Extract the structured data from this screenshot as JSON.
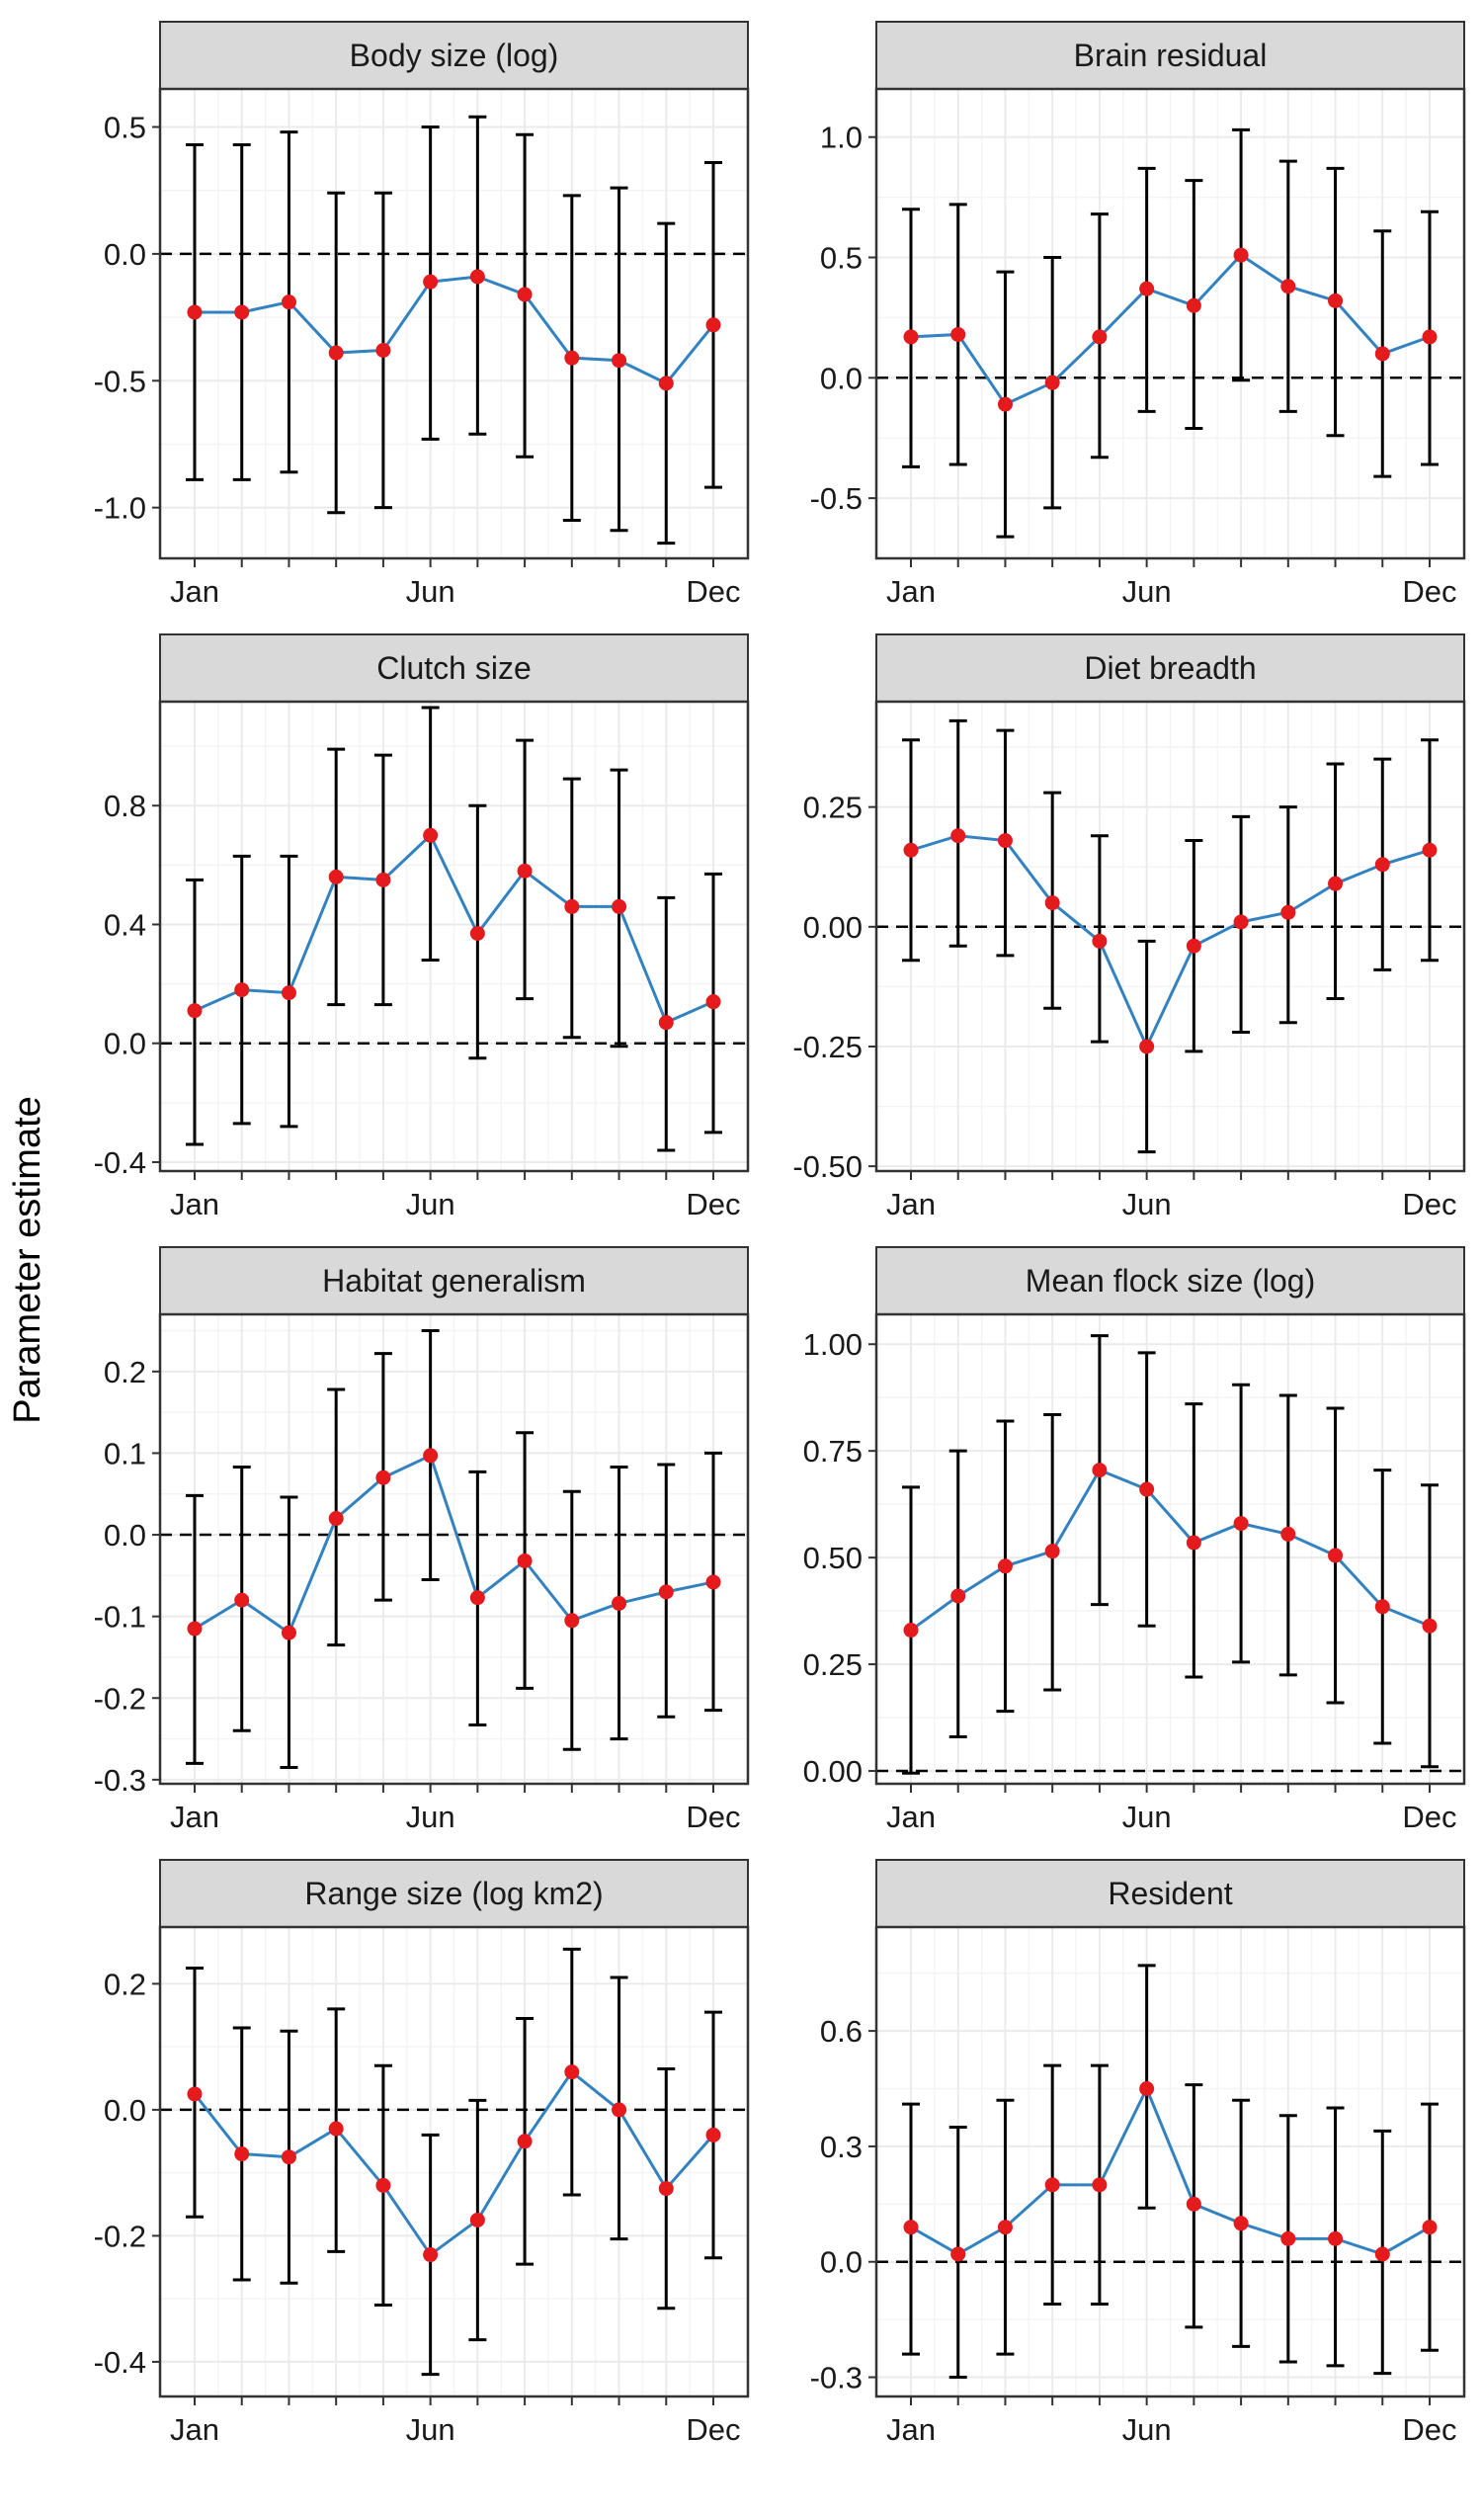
{
  "figure": {
    "ylabel": "Parameter estimate",
    "x_tick_labels": [
      "Jan",
      "Jun",
      "Dec"
    ]
  },
  "colors": {
    "line": "#3282c2",
    "point": "#e41a1c",
    "errorbar": "#000000",
    "strip_fill": "#d9d9d9",
    "strip_border": "#333333",
    "panel_border": "#333333",
    "grid_major": "#ebebeb",
    "grid_minor": "#f4f4f4",
    "zero_line": "#000000"
  },
  "chart_data": [
    {
      "type": "line",
      "title": "Body size (log)",
      "x": [
        1,
        2,
        3,
        4,
        5,
        6,
        7,
        8,
        9,
        10,
        11,
        12
      ],
      "values": [
        -0.23,
        -0.23,
        -0.19,
        -0.39,
        -0.38,
        -0.11,
        -0.09,
        -0.16,
        -0.41,
        -0.42,
        -0.51,
        -0.28
      ],
      "lower": [
        -0.89,
        -0.89,
        -0.86,
        -1.02,
        -1.0,
        -0.73,
        -0.71,
        -0.8,
        -1.05,
        -1.09,
        -1.14,
        -0.92
      ],
      "upper": [
        0.43,
        0.43,
        0.48,
        0.24,
        0.24,
        0.5,
        0.54,
        0.47,
        0.23,
        0.26,
        0.12,
        0.36
      ],
      "ylim": [
        -1.2,
        0.65
      ],
      "yticks": [
        -1.0,
        -0.5,
        0.0,
        0.5
      ],
      "ytick_labels": [
        "-1.0",
        "-0.5",
        "0.0",
        "0.5"
      ],
      "grid": true,
      "zero_line": "dashed"
    },
    {
      "type": "line",
      "title": "Brain residual",
      "x": [
        1,
        2,
        3,
        4,
        5,
        6,
        7,
        8,
        9,
        10,
        11,
        12
      ],
      "values": [
        0.17,
        0.18,
        -0.11,
        -0.02,
        0.17,
        0.37,
        0.3,
        0.51,
        0.38,
        0.32,
        0.1,
        0.17
      ],
      "lower": [
        -0.37,
        -0.36,
        -0.66,
        -0.54,
        -0.33,
        -0.14,
        -0.21,
        -0.01,
        -0.14,
        -0.24,
        -0.41,
        -0.36
      ],
      "upper": [
        0.7,
        0.72,
        0.44,
        0.5,
        0.68,
        0.87,
        0.82,
        1.03,
        0.9,
        0.87,
        0.61,
        0.69
      ],
      "ylim": [
        -0.75,
        1.2
      ],
      "yticks": [
        -0.5,
        0.0,
        0.5,
        1.0
      ],
      "ytick_labels": [
        "-0.5",
        "0.0",
        "0.5",
        "1.0"
      ],
      "grid": true,
      "zero_line": "dashed"
    },
    {
      "type": "line",
      "title": "Clutch size",
      "x": [
        1,
        2,
        3,
        4,
        5,
        6,
        7,
        8,
        9,
        10,
        11,
        12
      ],
      "values": [
        0.11,
        0.18,
        0.17,
        0.56,
        0.55,
        0.7,
        0.37,
        0.58,
        0.46,
        0.46,
        0.07,
        0.14
      ],
      "lower": [
        -0.34,
        -0.27,
        -0.28,
        0.13,
        0.13,
        0.28,
        -0.05,
        0.15,
        0.02,
        -0.01,
        -0.36,
        -0.3
      ],
      "upper": [
        0.55,
        0.63,
        0.63,
        0.99,
        0.97,
        1.13,
        0.8,
        1.02,
        0.89,
        0.92,
        0.49,
        0.57
      ],
      "ylim": [
        -0.43,
        1.15
      ],
      "yticks": [
        -0.4,
        0.0,
        0.4,
        0.8
      ],
      "ytick_labels": [
        "-0.4",
        "0.0",
        "0.4",
        "0.8"
      ],
      "grid": true,
      "zero_line": "dashed"
    },
    {
      "type": "line",
      "title": "Diet breadth",
      "x": [
        1,
        2,
        3,
        4,
        5,
        6,
        7,
        8,
        9,
        10,
        11,
        12
      ],
      "values": [
        0.16,
        0.19,
        0.18,
        0.05,
        -0.03,
        -0.25,
        -0.04,
        0.01,
        0.03,
        0.09,
        0.13,
        0.16
      ],
      "lower": [
        -0.07,
        -0.04,
        -0.06,
        -0.17,
        -0.24,
        -0.47,
        -0.26,
        -0.22,
        -0.2,
        -0.15,
        -0.09,
        -0.07
      ],
      "upper": [
        0.39,
        0.43,
        0.41,
        0.28,
        0.19,
        -0.03,
        0.18,
        0.23,
        0.25,
        0.34,
        0.35,
        0.39
      ],
      "ylim": [
        -0.51,
        0.47
      ],
      "yticks": [
        -0.5,
        -0.25,
        0.0,
        0.25
      ],
      "ytick_labels": [
        "-0.50",
        "-0.25",
        "0.00",
        "0.25"
      ],
      "grid": true,
      "zero_line": "dashed"
    },
    {
      "type": "line",
      "title": "Habitat generalism",
      "x": [
        1,
        2,
        3,
        4,
        5,
        6,
        7,
        8,
        9,
        10,
        11,
        12
      ],
      "values": [
        -0.115,
        -0.08,
        -0.12,
        0.02,
        0.07,
        0.097,
        -0.077,
        -0.032,
        -0.105,
        -0.084,
        -0.07,
        -0.058
      ],
      "lower": [
        -0.28,
        -0.24,
        -0.285,
        -0.135,
        -0.08,
        -0.055,
        -0.233,
        -0.188,
        -0.263,
        -0.25,
        -0.223,
        -0.215
      ],
      "upper": [
        0.048,
        0.083,
        0.046,
        0.178,
        0.222,
        0.25,
        0.077,
        0.125,
        0.053,
        0.083,
        0.086,
        0.1
      ],
      "ylim": [
        -0.305,
        0.27
      ],
      "yticks": [
        -0.3,
        -0.2,
        -0.1,
        0.0,
        0.1,
        0.2
      ],
      "ytick_labels": [
        "-0.3",
        "-0.2",
        "-0.1",
        "0.0",
        "0.1",
        "0.2"
      ],
      "grid": true,
      "zero_line": "dashed"
    },
    {
      "type": "line",
      "title": "Mean flock size (log)",
      "x": [
        1,
        2,
        3,
        4,
        5,
        6,
        7,
        8,
        9,
        10,
        11,
        12
      ],
      "values": [
        0.33,
        0.41,
        0.48,
        0.515,
        0.705,
        0.66,
        0.535,
        0.58,
        0.555,
        0.505,
        0.385,
        0.34
      ],
      "lower": [
        -0.005,
        0.08,
        0.14,
        0.19,
        0.39,
        0.34,
        0.22,
        0.255,
        0.225,
        0.16,
        0.065,
        0.01
      ],
      "upper": [
        0.665,
        0.75,
        0.82,
        0.835,
        1.02,
        0.98,
        0.86,
        0.905,
        0.88,
        0.85,
        0.705,
        0.67
      ],
      "ylim": [
        -0.03,
        1.07
      ],
      "yticks": [
        0.0,
        0.25,
        0.5,
        0.75,
        1.0
      ],
      "ytick_labels": [
        "0.00",
        "0.25",
        "0.50",
        "0.75",
        "1.00"
      ],
      "grid": true,
      "zero_line": "dashed"
    },
    {
      "type": "line",
      "title": "Range size (log km2)",
      "x": [
        1,
        2,
        3,
        4,
        5,
        6,
        7,
        8,
        9,
        10,
        11,
        12
      ],
      "values": [
        0.025,
        -0.07,
        -0.075,
        -0.03,
        -0.12,
        -0.23,
        -0.175,
        -0.05,
        0.06,
        0.0,
        -0.125,
        -0.04
      ],
      "lower": [
        -0.17,
        -0.27,
        -0.275,
        -0.225,
        -0.31,
        -0.42,
        -0.365,
        -0.245,
        -0.135,
        -0.205,
        -0.315,
        -0.235
      ],
      "upper": [
        0.225,
        0.13,
        0.125,
        0.16,
        0.07,
        -0.04,
        0.015,
        0.145,
        0.255,
        0.21,
        0.065,
        0.155
      ],
      "ylim": [
        -0.455,
        0.29
      ],
      "yticks": [
        -0.4,
        -0.2,
        0.0,
        0.2
      ],
      "ytick_labels": [
        "-0.4",
        "-0.2",
        "0.0",
        "0.2"
      ],
      "grid": true,
      "zero_line": "dashed"
    },
    {
      "type": "line",
      "title": "Resident",
      "x": [
        1,
        2,
        3,
        4,
        5,
        6,
        7,
        8,
        9,
        10,
        11,
        12
      ],
      "values": [
        0.09,
        0.02,
        0.09,
        0.2,
        0.2,
        0.45,
        0.15,
        0.1,
        0.06,
        0.06,
        0.02,
        0.09
      ],
      "lower": [
        -0.24,
        -0.3,
        -0.24,
        -0.11,
        -0.11,
        0.14,
        -0.17,
        -0.22,
        -0.26,
        -0.27,
        -0.29,
        -0.23
      ],
      "upper": [
        0.41,
        0.35,
        0.42,
        0.51,
        0.51,
        0.77,
        0.46,
        0.42,
        0.38,
        0.4,
        0.34,
        0.41
      ],
      "ylim": [
        -0.35,
        0.87
      ],
      "yticks": [
        -0.3,
        0.0,
        0.3,
        0.6
      ],
      "ytick_labels": [
        "-0.3",
        "0.0",
        "0.3",
        "0.6"
      ],
      "grid": true,
      "zero_line": "dashed"
    }
  ]
}
